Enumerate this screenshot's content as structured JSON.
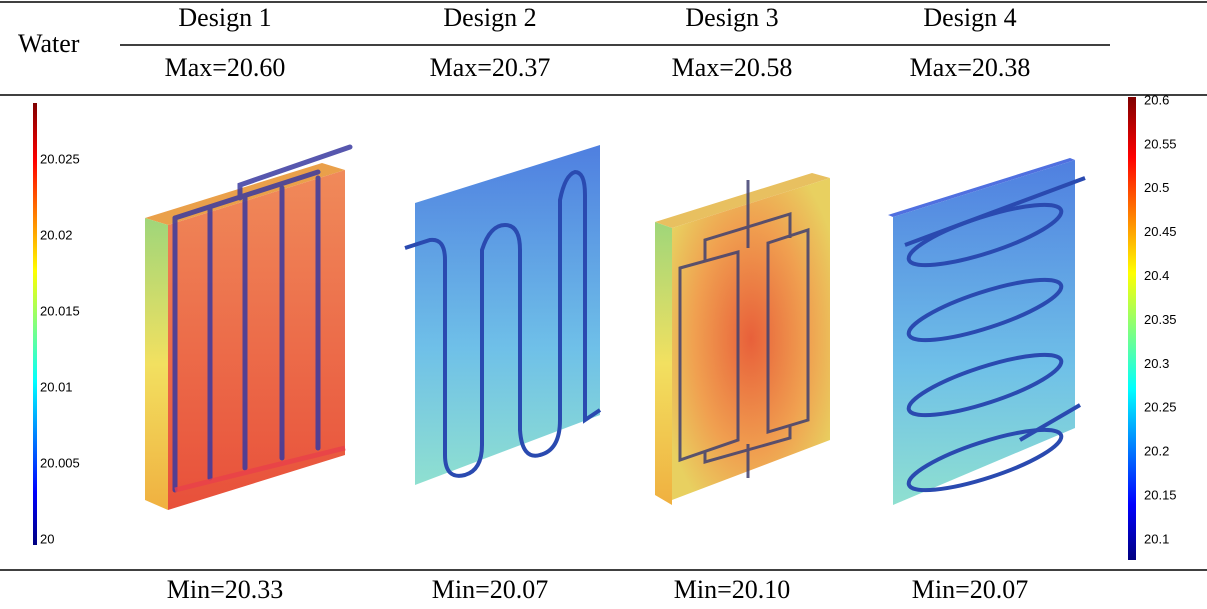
{
  "header": {
    "row_label": "Water"
  },
  "designs": [
    {
      "name": "Design 1",
      "max": "Max=20.60",
      "min": "Min=20.33"
    },
    {
      "name": "Design 2",
      "max": "Max=20.37",
      "min": "Min=20.07"
    },
    {
      "name": "Design 3",
      "max": "Max=20.58",
      "min": "Min=20.10"
    },
    {
      "name": "Design 4",
      "max": "Max=20.38",
      "min": "Min=20.07"
    }
  ],
  "left_colorbar": {
    "ticks": [
      "20.025",
      "20.02",
      "20.015",
      "20.01",
      "20.005",
      "20"
    ]
  },
  "right_colorbar": {
    "ticks": [
      "20.6",
      "20.55",
      "20.5",
      "20.45",
      "20.4",
      "20.35",
      "20.3",
      "20.25",
      "20.2",
      "20.15",
      "20.1"
    ]
  }
}
